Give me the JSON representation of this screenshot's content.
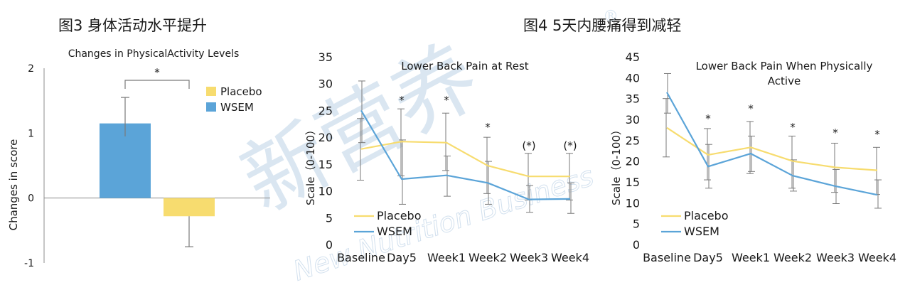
{
  "figure_titles": {
    "left": "图3 身体活动水平提升",
    "right": "图4 5天内腰痛得到减轻"
  },
  "watermark": {
    "main": "新营养",
    "sub": "New Nutrition Business",
    "mark": "®"
  },
  "colors": {
    "placebo": "#f7dc6f",
    "wsem": "#5ba4d8",
    "error": "#7a7a7a",
    "axis": "#8c8c8c"
  },
  "chart_data": [
    {
      "id": "activity",
      "type": "bar",
      "title": "Changes in PhysicalActivity Levels",
      "ylabel": "Changes in score",
      "xlabel": "",
      "ylim": [
        -1,
        2
      ],
      "yticks": [
        "2",
        "1",
        "0",
        "-1"
      ],
      "series": [
        {
          "name": "WSEM",
          "value": 1.15,
          "err_low": 0.95,
          "err_high": 1.55
        },
        {
          "name": "Placebo",
          "value": -0.28,
          "err_low": -0.75,
          "err_high": -0.28
        }
      ],
      "legend": [
        "Placebo",
        "WSEM"
      ],
      "significance": "*"
    },
    {
      "id": "rest",
      "type": "line",
      "title": "Lower Back Pain at Rest",
      "ylabel": "Scale（0-100）",
      "ylim": [
        0,
        35
      ],
      "yticks": [
        "35",
        "30",
        "25",
        "20",
        "15",
        "10",
        "5",
        "0"
      ],
      "x": [
        "Baseline",
        "Day5",
        "Week1",
        "Week2",
        "Week3",
        "Week4"
      ],
      "series": [
        {
          "name": "Placebo",
          "values": [
            17.8,
            19.2,
            19.0,
            14.7,
            12.7,
            12.7
          ],
          "err_low": [
            12.0,
            12.8,
            13.8,
            9.5,
            8.3,
            8.3
          ],
          "err_high": [
            23.5,
            25.3,
            24.5,
            20.0,
            17.0,
            17.0
          ]
        },
        {
          "name": "WSEM",
          "values": [
            25.0,
            12.2,
            12.9,
            11.5,
            8.4,
            8.5
          ],
          "err_low": [
            19.0,
            7.5,
            9.0,
            7.5,
            6.0,
            5.8
          ],
          "err_high": [
            30.5,
            19.5,
            16.5,
            15.5,
            11.0,
            11.5
          ]
        }
      ],
      "annotations": [
        "",
        "*",
        "*",
        "*",
        "(*)",
        "(*)"
      ],
      "legend": [
        "Placebo",
        "WSEM"
      ]
    },
    {
      "id": "active",
      "type": "line",
      "title_lines": [
        "Lower Back Pain When Physically",
        "Active"
      ],
      "ylabel": "Scale（0-100）",
      "ylim": [
        0,
        45
      ],
      "yticks": [
        "45",
        "40",
        "35",
        "30",
        "25",
        "20",
        "15",
        "10",
        "5",
        "0"
      ],
      "x": [
        "Baseline",
        "Day5",
        "Week1",
        "Week2",
        "Week3",
        "Week4"
      ],
      "series": [
        {
          "name": "Placebo",
          "values": [
            28.0,
            21.5,
            23.3,
            20.0,
            18.5,
            17.8
          ],
          "err_low": [
            21.0,
            15.5,
            17.0,
            13.5,
            12.5,
            12.0
          ],
          "err_high": [
            35.0,
            27.8,
            29.5,
            26.0,
            24.3,
            23.3
          ]
        },
        {
          "name": "WSEM",
          "values": [
            36.5,
            18.7,
            21.8,
            16.5,
            14.0,
            11.9
          ],
          "err_low": [
            31.5,
            13.5,
            17.5,
            12.8,
            9.8,
            8.7
          ],
          "err_high": [
            41.0,
            24.0,
            26.0,
            20.3,
            18.0,
            15.5
          ]
        }
      ],
      "annotations": [
        "",
        "*",
        "*",
        "*",
        "*",
        "*"
      ],
      "legend": [
        "Placebo",
        "WSEM"
      ]
    }
  ]
}
